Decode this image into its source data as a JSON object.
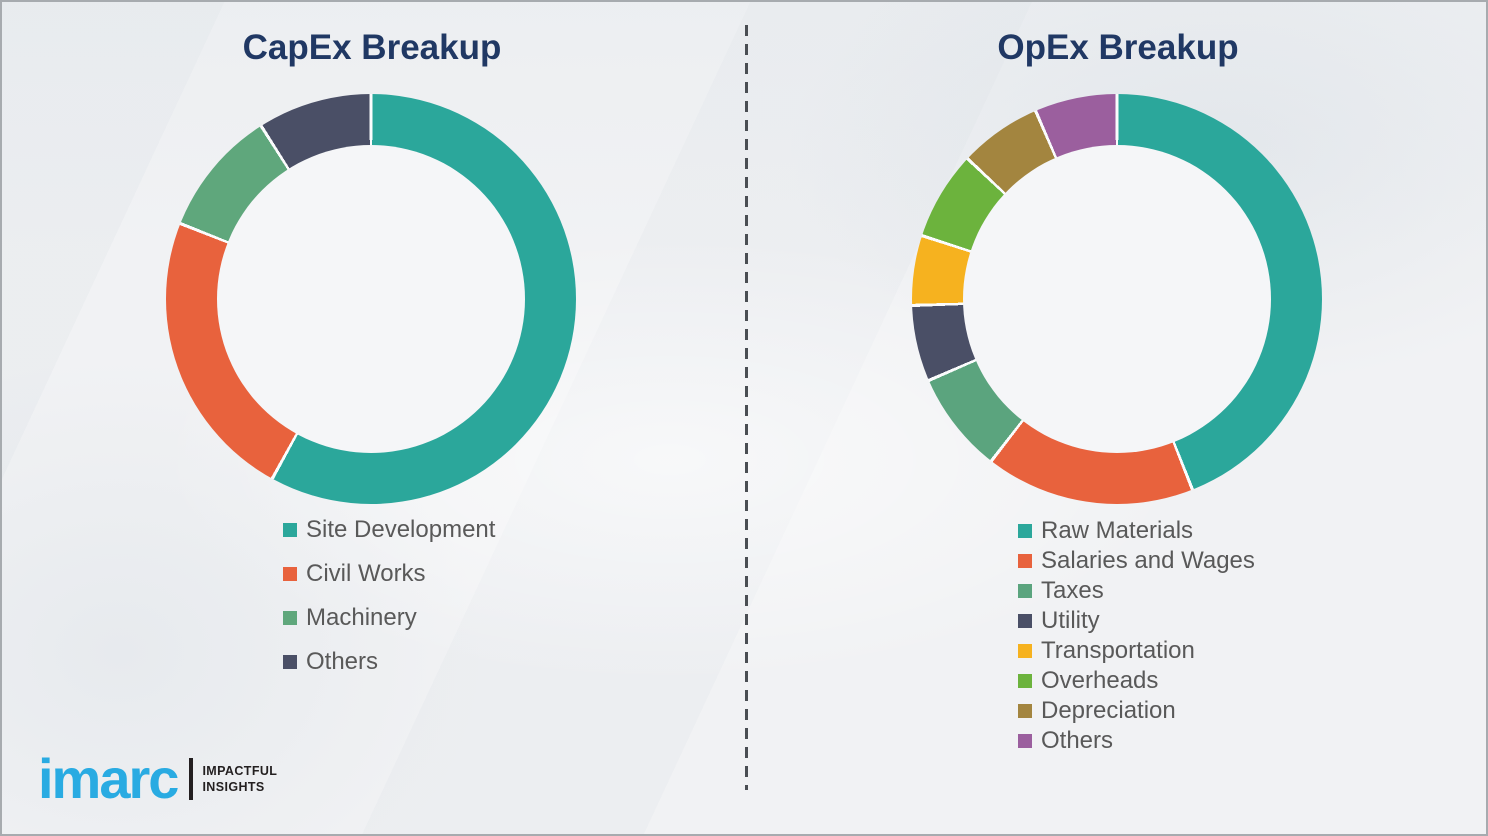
{
  "page": {
    "background_color": "#F1F2F4",
    "border_color": "#A7ABAF"
  },
  "theme": {
    "title_color": "#203864",
    "legend_text_color": "#595959",
    "divider_color": "#4A4E53",
    "segment_separator_color": "#FBFCFD"
  },
  "logo": {
    "wordmark": "imarc",
    "tagline_line1": "IMPACTFUL",
    "tagline_line2": "INSIGHTS",
    "wordmark_color": "#29ABE2",
    "tagline_color": "#231F20"
  },
  "chart_data": [
    {
      "type": "pie",
      "subtype": "donut",
      "title": "CapEx Breakup",
      "values_are_estimated_percent": true,
      "legend_position": "below",
      "start_angle_deg": 0,
      "direction": "clockwise",
      "segments": [
        {
          "label": "Site Development",
          "value": 58,
          "color": "#2BA79B"
        },
        {
          "label": "Civil Works",
          "value": 23,
          "color": "#E8623D"
        },
        {
          "label": "Machinery",
          "value": 10,
          "color": "#5FA77C"
        },
        {
          "label": "Others",
          "value": 9,
          "color": "#4A4F66"
        }
      ]
    },
    {
      "type": "pie",
      "subtype": "donut",
      "title": "OpEx Breakup",
      "values_are_estimated_percent": true,
      "legend_position": "below",
      "start_angle_deg": 0,
      "direction": "clockwise",
      "segments": [
        {
          "label": "Raw Materials",
          "value": 44,
          "color": "#2BA79B"
        },
        {
          "label": "Salaries and Wages",
          "value": 16.5,
          "color": "#E8623D"
        },
        {
          "label": "Taxes",
          "value": 8,
          "color": "#5BA47E"
        },
        {
          "label": "Utility",
          "value": 6,
          "color": "#4A4F66"
        },
        {
          "label": "Transportation",
          "value": 5.5,
          "color": "#F6B21F"
        },
        {
          "label": "Overheads",
          "value": 7,
          "color": "#6CB33D"
        },
        {
          "label": "Depreciation",
          "value": 6.5,
          "color": "#A3853F"
        },
        {
          "label": "Others",
          "value": 6.5,
          "color": "#9B5F9E"
        }
      ]
    }
  ]
}
